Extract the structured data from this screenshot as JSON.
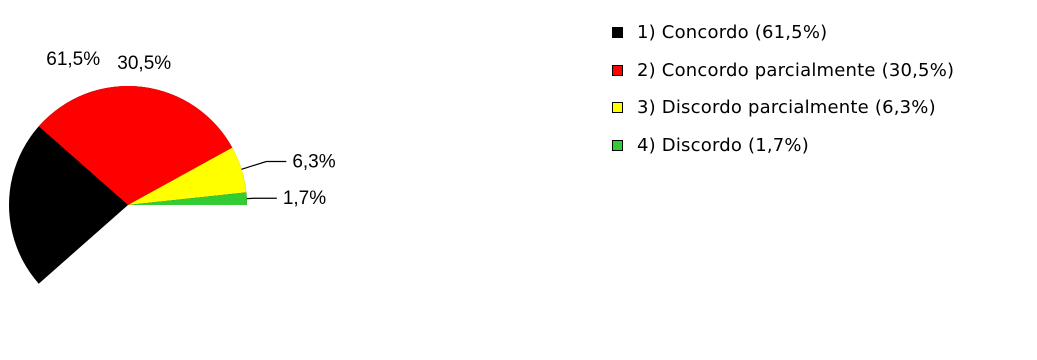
{
  "chart_data": {
    "type": "pie",
    "slices": [
      {
        "label": "1) Concordo (61,5%)",
        "value": 61.5,
        "data_label": "61,5%",
        "color": "#000000"
      },
      {
        "label": "2) Concordo parcialmente (30,5%)",
        "value": 30.5,
        "data_label": "30,5%",
        "color": "#ff0000"
      },
      {
        "label": "3) Discordo parcialmente (6,3%)",
        "value": 6.3,
        "data_label": "6,3%",
        "color": "#ffff00"
      },
      {
        "label": "4) Discordo (1,7%)",
        "value": 1.7,
        "data_label": "1,7%",
        "color": "#33cc33"
      }
    ],
    "legend_position": "top-right"
  }
}
